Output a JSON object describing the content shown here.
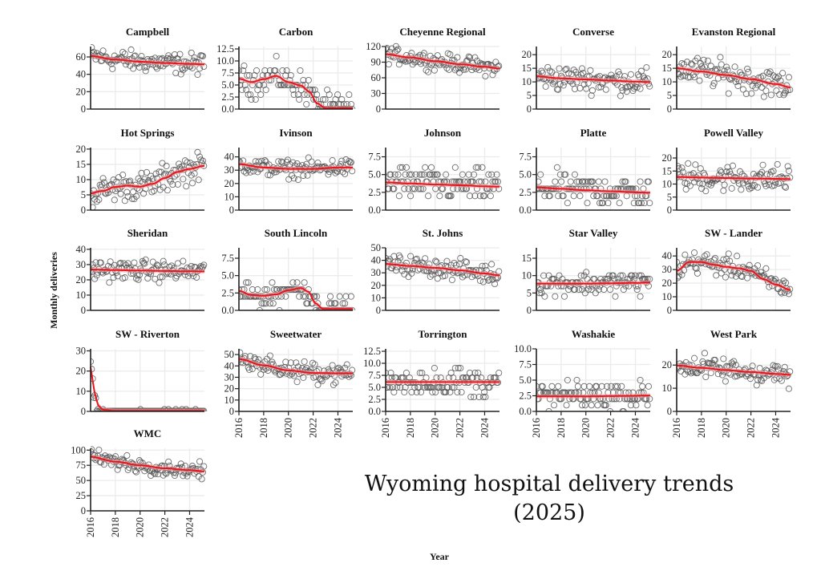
{
  "chart_data": {
    "type": "scatter",
    "title": "Wyoming hospital delivery trends",
    "subtitle": "(2025)",
    "xlabel": "Year",
    "ylabel": "Monthly deliveries",
    "xlim": [
      2016,
      2025.2
    ],
    "x_ticks": [
      2016,
      2018,
      2020,
      2022,
      2024
    ],
    "point_style": "open circle",
    "trend_style": "red smooth line with light red confidence band",
    "colors": {
      "points": "#555555",
      "trend": "#e8141c",
      "band": "#f4a3a6",
      "grid": "#ebebeb",
      "axis": "#222222"
    },
    "panels": [
      {
        "name": "Campbell",
        "ylim": [
          0,
          72
        ],
        "yticks": [
          "0",
          "20",
          "40",
          "60"
        ],
        "tickvals": [
          0,
          20,
          40,
          60
        ],
        "trend": [
          [
            2016,
            61
          ],
          [
            2018,
            57
          ],
          [
            2020,
            54.5
          ],
          [
            2022,
            53
          ],
          [
            2024,
            52
          ],
          [
            2025.2,
            51.5
          ]
        ],
        "center": 52,
        "spread": 9
      },
      {
        "name": "Carbon",
        "ylim": [
          0,
          13
        ],
        "yticks": [
          "0.0",
          "2.5",
          "5.0",
          "7.5",
          "10.0",
          "12.5"
        ],
        "tickvals": [
          0,
          2.5,
          5,
          7.5,
          10,
          12.5
        ],
        "trend": [
          [
            2016,
            6.3
          ],
          [
            2017,
            5.6
          ],
          [
            2018,
            6.2
          ],
          [
            2019,
            6.9
          ],
          [
            2020,
            5.6
          ],
          [
            2021,
            4.9
          ],
          [
            2021.7,
            3.6
          ],
          [
            2022.3,
            1.2
          ],
          [
            2023,
            0.2
          ],
          [
            2025.2,
            0.2
          ]
        ],
        "center": 5,
        "spread": 2.3
      },
      {
        "name": "Cheyenne Regional",
        "ylim": [
          0,
          120
        ],
        "yticks": [
          "0",
          "30",
          "60",
          "90",
          "120"
        ],
        "tickvals": [
          0,
          30,
          60,
          90,
          120
        ],
        "trend": [
          [
            2016,
            105
          ],
          [
            2018,
            99
          ],
          [
            2020,
            92
          ],
          [
            2022,
            86
          ],
          [
            2024,
            81
          ],
          [
            2025.2,
            78
          ]
        ],
        "center": 92,
        "spread": 12
      },
      {
        "name": "Converse",
        "ylim": [
          0,
          23
        ],
        "yticks": [
          "0",
          "5",
          "10",
          "15",
          "20"
        ],
        "tickvals": [
          0,
          5,
          10,
          15,
          20
        ],
        "trend": [
          [
            2016,
            12
          ],
          [
            2018,
            11.3
          ],
          [
            2020,
            10.9
          ],
          [
            2022,
            10.5
          ],
          [
            2024,
            10.1
          ],
          [
            2025.2,
            9.9
          ]
        ],
        "center": 10.5,
        "spread": 3.5
      },
      {
        "name": "Evanston Regional",
        "ylim": [
          0,
          23
        ],
        "yticks": [
          "0",
          "5",
          "10",
          "15",
          "20"
        ],
        "tickvals": [
          0,
          5,
          10,
          15,
          20
        ],
        "trend": [
          [
            2016,
            15
          ],
          [
            2018,
            13.8
          ],
          [
            2020,
            12.5
          ],
          [
            2022,
            11
          ],
          [
            2024,
            9.2
          ],
          [
            2025.2,
            8
          ]
        ],
        "center": 12,
        "spread": 4
      },
      {
        "name": "Hot Springs",
        "ylim": [
          0,
          20.5
        ],
        "yticks": [
          "0",
          "5",
          "10",
          "15",
          "20"
        ],
        "tickvals": [
          0,
          5,
          10,
          15,
          20
        ],
        "trend": [
          [
            2016,
            5.5
          ],
          [
            2017,
            6.3
          ],
          [
            2018,
            7.6
          ],
          [
            2019,
            8
          ],
          [
            2020,
            7.7
          ],
          [
            2021,
            8.6
          ],
          [
            2022,
            10.5
          ],
          [
            2023,
            12.5
          ],
          [
            2024,
            13.5
          ],
          [
            2025.2,
            14.5
          ]
        ],
        "center": 9,
        "spread": 3.5
      },
      {
        "name": "Ivinson",
        "ylim": [
          0,
          47
        ],
        "yticks": [
          "0",
          "10",
          "20",
          "30",
          "40"
        ],
        "tickvals": [
          0,
          10,
          20,
          30,
          40
        ],
        "trend": [
          [
            2016,
            34.5
          ],
          [
            2018,
            32
          ],
          [
            2020,
            31
          ],
          [
            2022,
            31
          ],
          [
            2024,
            32
          ],
          [
            2025.2,
            32
          ]
        ],
        "center": 31.5,
        "spread": 5
      },
      {
        "name": "Johnson",
        "ylim": [
          0,
          8.8
        ],
        "yticks": [
          "0.0",
          "2.5",
          "5.0",
          "7.5"
        ],
        "tickvals": [
          0,
          2.5,
          5,
          7.5
        ],
        "trend": [
          [
            2016,
            3.9
          ],
          [
            2018,
            3.75
          ],
          [
            2020,
            3.6
          ],
          [
            2022,
            3.5
          ],
          [
            2024,
            3.35
          ],
          [
            2025.2,
            3.3
          ]
        ],
        "center": 3.5,
        "spread": 1.8
      },
      {
        "name": "Platte",
        "ylim": [
          0,
          8.8
        ],
        "yticks": [
          "0.0",
          "2.5",
          "5.0",
          "7.5"
        ],
        "tickvals": [
          0,
          2.5,
          5,
          7.5
        ],
        "trend": [
          [
            2016,
            3.2
          ],
          [
            2018,
            3.0
          ],
          [
            2020,
            2.8
          ],
          [
            2022,
            2.65
          ],
          [
            2024,
            2.5
          ],
          [
            2025.2,
            2.45
          ]
        ],
        "center": 2.8,
        "spread": 1.6
      },
      {
        "name": "Powell Valley",
        "ylim": [
          0,
          24
        ],
        "yticks": [
          "0",
          "5",
          "10",
          "15",
          "20"
        ],
        "tickvals": [
          0,
          5,
          10,
          15,
          20
        ],
        "trend": [
          [
            2016,
            12.7
          ],
          [
            2018,
            12.5
          ],
          [
            2020,
            12.3
          ],
          [
            2022,
            12.1
          ],
          [
            2024,
            12
          ],
          [
            2025.2,
            11.9
          ]
        ],
        "center": 12,
        "spread": 4
      },
      {
        "name": "Sheridan",
        "ylim": [
          0,
          41
        ],
        "yticks": [
          "0",
          "10",
          "20",
          "30",
          "40"
        ],
        "tickvals": [
          0,
          10,
          20,
          30,
          40
        ],
        "trend": [
          [
            2016,
            26.8
          ],
          [
            2018,
            26.4
          ],
          [
            2020,
            26.1
          ],
          [
            2022,
            25.8
          ],
          [
            2024,
            25.6
          ],
          [
            2025.2,
            25.5
          ]
        ],
        "center": 26,
        "spread": 5
      },
      {
        "name": "South Lincoln",
        "ylim": [
          0,
          9
        ],
        "yticks": [
          "0.0",
          "2.5",
          "5.0",
          "7.5"
        ],
        "tickvals": [
          0,
          2.5,
          5,
          7.5
        ],
        "trend": [
          [
            2016,
            2.8
          ],
          [
            2017,
            2.2
          ],
          [
            2018,
            2.1
          ],
          [
            2019,
            2.3
          ],
          [
            2020,
            2.9
          ],
          [
            2021,
            3.2
          ],
          [
            2021.6,
            2.7
          ],
          [
            2022.2,
            1.0
          ],
          [
            2022.8,
            0.2
          ],
          [
            2025.2,
            0.2
          ]
        ],
        "center": 2,
        "spread": 1.3
      },
      {
        "name": "St. Johns",
        "ylim": [
          0,
          50
        ],
        "yticks": [
          "0",
          "10",
          "20",
          "30",
          "40",
          "50"
        ],
        "tickvals": [
          0,
          10,
          20,
          30,
          40,
          50
        ],
        "trend": [
          [
            2016,
            37
          ],
          [
            2018,
            35.5
          ],
          [
            2020,
            34
          ],
          [
            2022,
            32
          ],
          [
            2024,
            29.5
          ],
          [
            2025.2,
            28
          ]
        ],
        "center": 32,
        "spread": 6
      },
      {
        "name": "Star Valley",
        "ylim": [
          0,
          18
        ],
        "yticks": [
          "0",
          "5",
          "10",
          "15"
        ],
        "tickvals": [
          0,
          5,
          10,
          15
        ],
        "trend": [
          [
            2016,
            7.7
          ],
          [
            2018,
            7.7
          ],
          [
            2020,
            7.7
          ],
          [
            2022,
            7.8
          ],
          [
            2024,
            7.9
          ],
          [
            2025.2,
            8
          ]
        ],
        "center": 7.8,
        "spread": 2.5
      },
      {
        "name": "SW - Lander",
        "ylim": [
          0,
          46
        ],
        "yticks": [
          "0",
          "10",
          "20",
          "30",
          "40"
        ],
        "tickvals": [
          0,
          10,
          20,
          30,
          40
        ],
        "trend": [
          [
            2016,
            29
          ],
          [
            2017,
            35.5
          ],
          [
            2018,
            35.5
          ],
          [
            2019,
            33.5
          ],
          [
            2020,
            32
          ],
          [
            2021,
            31
          ],
          [
            2022,
            29
          ],
          [
            2023,
            23
          ],
          [
            2024,
            19
          ],
          [
            2025.2,
            15
          ]
        ],
        "center": 28,
        "spread": 6
      },
      {
        "name": "SW - Riverton",
        "ylim": [
          0,
          31
        ],
        "yticks": [
          "0",
          "10",
          "20",
          "30"
        ],
        "tickvals": [
          0,
          10,
          20,
          30
        ],
        "trend": [
          [
            2016,
            22
          ],
          [
            2016.3,
            10
          ],
          [
            2016.6,
            3
          ],
          [
            2017,
            0.8
          ],
          [
            2018,
            0.3
          ],
          [
            2025.2,
            0.3
          ]
        ],
        "center": 0.3,
        "spread": 0.3
      },
      {
        "name": "Sweetwater",
        "ylim": [
          0,
          55
        ],
        "yticks": [
          "0",
          "10",
          "20",
          "30",
          "40",
          "50"
        ],
        "tickvals": [
          0,
          10,
          20,
          30,
          40,
          50
        ],
        "trend": [
          [
            2016,
            46
          ],
          [
            2018,
            40.5
          ],
          [
            2020,
            36
          ],
          [
            2022,
            33.8
          ],
          [
            2024,
            33.5
          ],
          [
            2025.2,
            33.5
          ]
        ],
        "center": 35,
        "spread": 6
      },
      {
        "name": "Torrington",
        "ylim": [
          0,
          13
        ],
        "yticks": [
          "0.0",
          "2.5",
          "5.0",
          "7.5",
          "10.0",
          "12.5"
        ],
        "tickvals": [
          0,
          2.5,
          5,
          7.5,
          10,
          12.5
        ],
        "trend": [
          [
            2016,
            6.1
          ],
          [
            2018,
            6.1
          ],
          [
            2020,
            6.1
          ],
          [
            2022,
            6.1
          ],
          [
            2024,
            6.1
          ],
          [
            2025.2,
            6.1
          ]
        ],
        "center": 6,
        "spread": 2.4
      },
      {
        "name": "Washakie",
        "ylim": [
          0,
          10
        ],
        "yticks": [
          "0.0",
          "2.5",
          "5.0",
          "7.5",
          "10.0"
        ],
        "tickvals": [
          0,
          2.5,
          5,
          7.5,
          10
        ],
        "trend": [
          [
            2016,
            2.4
          ],
          [
            2018,
            2.4
          ],
          [
            2020,
            2.4
          ],
          [
            2022,
            2.45
          ],
          [
            2024,
            2.5
          ],
          [
            2025.2,
            2.55
          ]
        ],
        "center": 2.4,
        "spread": 1.6
      },
      {
        "name": "West Park",
        "ylim": [
          0,
          27
        ],
        "yticks": [
          "0",
          "10",
          "20"
        ],
        "tickvals": [
          0,
          10,
          20
        ],
        "trend": [
          [
            2016,
            19.8
          ],
          [
            2018,
            18.8
          ],
          [
            2020,
            17.8
          ],
          [
            2022,
            17
          ],
          [
            2024,
            16.2
          ],
          [
            2025.2,
            15.8
          ]
        ],
        "center": 17.5,
        "spread": 4
      },
      {
        "name": "WMC",
        "ylim": [
          0,
          103
        ],
        "yticks": [
          "0",
          "25",
          "50",
          "75",
          "100"
        ],
        "tickvals": [
          0,
          25,
          50,
          75,
          100
        ],
        "trend": [
          [
            2016,
            89
          ],
          [
            2018,
            81
          ],
          [
            2020,
            75
          ],
          [
            2022,
            70
          ],
          [
            2024,
            67
          ],
          [
            2025.2,
            65
          ]
        ],
        "center": 75,
        "spread": 9
      }
    ]
  }
}
